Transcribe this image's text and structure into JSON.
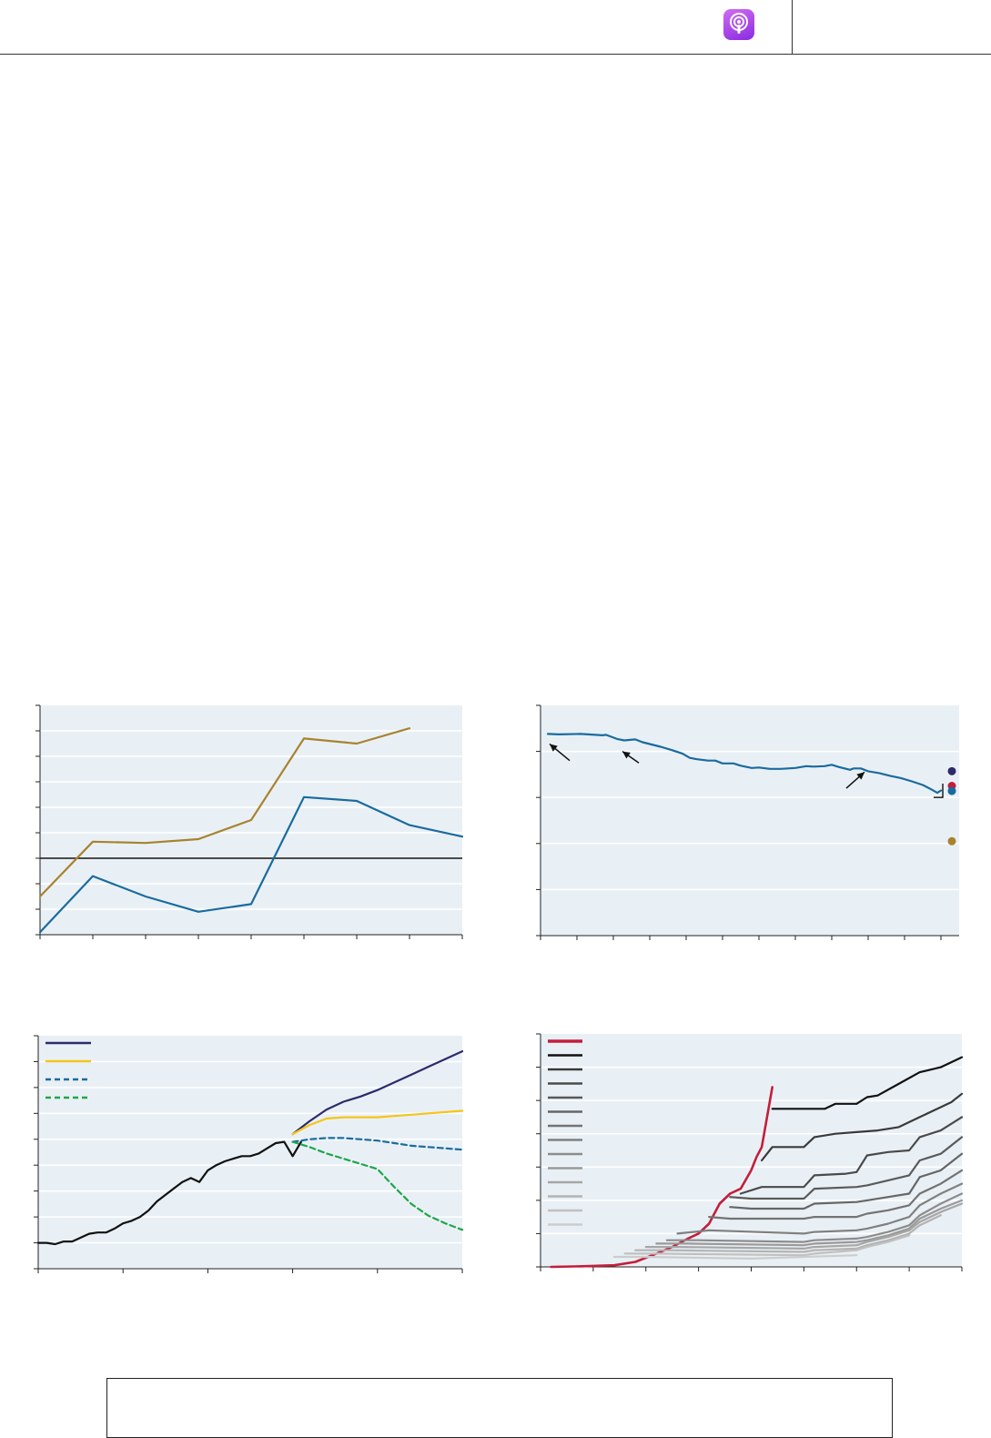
{
  "header": {
    "icon": "podcast-icon",
    "icon_color": "#9b3ee8"
  },
  "footer_box": {
    "text": ""
  },
  "chart_data": [
    {
      "id": "chart1",
      "type": "line",
      "title": "",
      "xlabel": "",
      "ylabel": "",
      "x": [
        0,
        1,
        2,
        3,
        4,
        5,
        6,
        7,
        8
      ],
      "xlim": [
        0,
        8
      ],
      "ylim": [
        -3,
        6
      ],
      "grid": true,
      "zero_line": 0,
      "series": [
        {
          "color": "#a8832f",
          "values": [
            -1.5,
            0.65,
            0.6,
            0.75,
            1.5,
            4.7,
            4.5,
            5.1,
            null
          ]
        },
        {
          "color": "#1a6b9f",
          "values": [
            -2.9,
            -0.7,
            -1.5,
            -2.1,
            -1.8,
            2.4,
            2.25,
            1.3,
            0.85
          ]
        }
      ],
      "background": "#e9f0f5"
    },
    {
      "id": "chart2",
      "type": "line",
      "title": "",
      "xlabel": "",
      "ylabel": "",
      "xlim": [
        0,
        115
      ],
      "ylim": [
        0,
        5
      ],
      "grid": true,
      "series": [
        {
          "color": "#1a6b9f",
          "x": [
            2,
            5,
            11,
            17,
            18,
            21,
            23,
            26,
            28,
            30,
            33,
            36,
            39,
            41,
            43,
            46,
            48,
            50,
            53,
            55,
            58,
            60,
            63,
            66,
            70,
            73,
            75,
            78,
            80,
            82,
            85,
            86,
            88,
            90,
            93,
            96,
            99,
            102,
            105,
            107,
            109,
            110
          ],
          "values": [
            4.38,
            4.37,
            4.38,
            4.35,
            4.36,
            4.27,
            4.24,
            4.26,
            4.2,
            4.16,
            4.1,
            4.03,
            3.95,
            3.86,
            3.83,
            3.8,
            3.8,
            3.74,
            3.74,
            3.69,
            3.64,
            3.65,
            3.62,
            3.62,
            3.64,
            3.68,
            3.67,
            3.68,
            3.71,
            3.66,
            3.6,
            3.63,
            3.63,
            3.57,
            3.53,
            3.47,
            3.42,
            3.35,
            3.27,
            3.19,
            3.1,
            3.15
          ]
        }
      ],
      "points": [
        {
          "x": 113,
          "y": 3.57,
          "color": "#2e2a6b"
        },
        {
          "x": 113,
          "y": 3.25,
          "color": "#c41e3a"
        },
        {
          "x": 113,
          "y": 3.14,
          "color": "#1a6b9f"
        },
        {
          "x": 113,
          "y": 2.05,
          "color": "#a8832f"
        }
      ],
      "annotations": [
        {
          "type": "arrow",
          "from": [
            8,
            3.8
          ],
          "to": [
            2.5,
            4.16
          ]
        },
        {
          "type": "arrow",
          "from": [
            27,
            3.75
          ],
          "to": [
            22.5,
            4.0
          ]
        },
        {
          "type": "arrow",
          "from": [
            84,
            3.2
          ],
          "to": [
            89,
            3.55
          ]
        },
        {
          "type": "bracket",
          "from": [
            110.5,
            3.3
          ],
          "to": [
            110.5,
            3.0
          ]
        }
      ],
      "background": "#e9f0f5"
    },
    {
      "id": "chart3",
      "type": "line",
      "title": "",
      "xlabel": "",
      "ylabel": "",
      "xlim": [
        0,
        50
      ],
      "ylim": [
        0,
        9
      ],
      "grid": true,
      "legend": {
        "placement": "top-left",
        "entries": [
          {
            "color": "#2e2a6b",
            "dash": false
          },
          {
            "color": "#f5c518",
            "dash": false
          },
          {
            "color": "#1a6b9f",
            "dash": true
          },
          {
            "color": "#1fa64a",
            "dash": true
          }
        ]
      },
      "series": [
        {
          "color": "#111111",
          "dash": false,
          "x": [
            0,
            1,
            2,
            3,
            4,
            5,
            6,
            7,
            8,
            9,
            10,
            11,
            12,
            13,
            14,
            15,
            16,
            17,
            18,
            19,
            20,
            21,
            22,
            23,
            24,
            25,
            26,
            27,
            28,
            29,
            30,
            31
          ],
          "values": [
            1.0,
            1.0,
            0.95,
            1.05,
            1.05,
            1.2,
            1.35,
            1.4,
            1.4,
            1.55,
            1.75,
            1.85,
            2.0,
            2.25,
            2.6,
            2.85,
            3.1,
            3.35,
            3.5,
            3.35,
            3.8,
            4.0,
            4.15,
            4.25,
            4.35,
            4.35,
            4.45,
            4.65,
            4.85,
            4.9,
            4.35,
            4.9
          ]
        },
        {
          "color": "#2e2a6b",
          "dash": false,
          "x": [
            30,
            32,
            34,
            36,
            38,
            40,
            42,
            44,
            46,
            48,
            50
          ],
          "values": [
            5.2,
            5.7,
            6.15,
            6.45,
            6.65,
            6.9,
            7.2,
            7.5,
            7.8,
            8.1,
            8.4
          ]
        },
        {
          "color": "#f5c518",
          "dash": false,
          "x": [
            30,
            32,
            34,
            36,
            38,
            40,
            42,
            44,
            46,
            48,
            50
          ],
          "values": [
            5.2,
            5.55,
            5.8,
            5.85,
            5.85,
            5.85,
            5.9,
            5.95,
            6.0,
            6.05,
            6.1
          ]
        },
        {
          "color": "#1a6b9f",
          "dash": true,
          "x": [
            30,
            32,
            34,
            36,
            38,
            40,
            42,
            44,
            46,
            48,
            50
          ],
          "values": [
            4.9,
            5.0,
            5.05,
            5.05,
            5.0,
            4.95,
            4.85,
            4.75,
            4.7,
            4.65,
            4.6
          ]
        },
        {
          "color": "#1fa64a",
          "dash": true,
          "x": [
            30,
            32,
            34,
            36,
            38,
            40,
            42,
            44,
            46,
            48,
            50
          ],
          "values": [
            4.9,
            4.7,
            4.45,
            4.25,
            4.05,
            3.85,
            3.15,
            2.5,
            2.05,
            1.75,
            1.5
          ]
        }
      ],
      "background": "#e9f0f5"
    },
    {
      "id": "chart4",
      "type": "line",
      "title": "",
      "xlabel": "",
      "ylabel": "",
      "xlim": [
        0,
        80
      ],
      "ylim": [
        0,
        7
      ],
      "grid": true,
      "legend": {
        "placement": "top-left",
        "entries": [
          {
            "color": "#c41e3a"
          },
          {
            "color": "#111111"
          },
          {
            "color": "#3a3a3a"
          },
          {
            "color": "#4a4a4a"
          },
          {
            "color": "#5a5a5a"
          },
          {
            "color": "#666666"
          },
          {
            "color": "#737373"
          },
          {
            "color": "#808080"
          },
          {
            "color": "#8c8c8c"
          },
          {
            "color": "#999999"
          },
          {
            "color": "#a6a6a6"
          },
          {
            "color": "#b3b3b3"
          },
          {
            "color": "#c0c0c0"
          },
          {
            "color": "#cccccc"
          }
        ]
      },
      "series": [
        {
          "color": "#c41e3a",
          "width": 2.6,
          "x": [
            2,
            8,
            14,
            18,
            22,
            25,
            28,
            30,
            32,
            34,
            36,
            38,
            40,
            41,
            42,
            43,
            44
          ],
          "values": [
            0,
            0.02,
            0.05,
            0.15,
            0.4,
            0.6,
            0.85,
            1.0,
            1.3,
            1.9,
            2.2,
            2.35,
            2.9,
            3.3,
            3.6,
            4.5,
            5.4
          ]
        },
        {
          "color": "#111111",
          "x": [
            44,
            50,
            54,
            56,
            60,
            62,
            64,
            68,
            72,
            76,
            78,
            80
          ],
          "values": [
            4.75,
            4.75,
            4.75,
            4.9,
            4.9,
            5.1,
            5.15,
            5.5,
            5.85,
            6.0,
            6.15,
            6.3
          ]
        },
        {
          "color": "#3a3a3a",
          "x": [
            42,
            44,
            50,
            52,
            56,
            60,
            64,
            68,
            72,
            76,
            78,
            80
          ],
          "values": [
            3.2,
            3.6,
            3.6,
            3.9,
            4.0,
            4.05,
            4.1,
            4.2,
            4.5,
            4.8,
            4.95,
            5.2
          ]
        },
        {
          "color": "#4a4a4a",
          "x": [
            38,
            42,
            50,
            52,
            58,
            60,
            62,
            66,
            70,
            72,
            76,
            80
          ],
          "values": [
            2.2,
            2.4,
            2.4,
            2.75,
            2.8,
            2.85,
            3.35,
            3.45,
            3.5,
            3.9,
            4.1,
            4.5
          ]
        },
        {
          "color": "#5a5a5a",
          "x": [
            36,
            40,
            50,
            52,
            60,
            62,
            66,
            70,
            72,
            76,
            80
          ],
          "values": [
            2.1,
            2.05,
            2.05,
            2.35,
            2.4,
            2.45,
            2.6,
            2.75,
            3.2,
            3.4,
            3.9
          ]
        },
        {
          "color": "#666666",
          "x": [
            36,
            40,
            50,
            52,
            60,
            62,
            66,
            70,
            72,
            76,
            80
          ],
          "values": [
            1.8,
            1.75,
            1.75,
            1.9,
            1.95,
            2.0,
            2.1,
            2.2,
            2.7,
            2.9,
            3.4
          ]
        },
        {
          "color": "#737373",
          "x": [
            32,
            36,
            50,
            52,
            60,
            62,
            66,
            70,
            72,
            76,
            80
          ],
          "values": [
            1.5,
            1.45,
            1.45,
            1.5,
            1.5,
            1.6,
            1.7,
            1.85,
            2.2,
            2.5,
            2.9
          ]
        },
        {
          "color": "#808080",
          "x": [
            26,
            32,
            50,
            52,
            60,
            62,
            66,
            70,
            72,
            76,
            80
          ],
          "values": [
            1.0,
            1.1,
            1.0,
            1.05,
            1.1,
            1.15,
            1.3,
            1.5,
            1.85,
            2.2,
            2.5
          ]
        },
        {
          "color": "#8c8c8c",
          "x": [
            24,
            30,
            50,
            52,
            60,
            62,
            66,
            70,
            72,
            76,
            80
          ],
          "values": [
            0.8,
            0.8,
            0.75,
            0.8,
            0.85,
            0.9,
            1.05,
            1.25,
            1.55,
            1.9,
            2.2
          ]
        },
        {
          "color": "#999999",
          "x": [
            22,
            28,
            50,
            52,
            60,
            62,
            66,
            70,
            72,
            76,
            80
          ],
          "values": [
            0.7,
            0.7,
            0.65,
            0.7,
            0.75,
            0.8,
            0.95,
            1.15,
            1.45,
            1.75,
            2.0
          ]
        },
        {
          "color": "#a6a6a6",
          "x": [
            20,
            26,
            50,
            52,
            60,
            62,
            66,
            70,
            72,
            76,
            80
          ],
          "values": [
            0.6,
            0.6,
            0.55,
            0.6,
            0.65,
            0.75,
            0.9,
            1.1,
            1.35,
            1.65,
            1.9
          ]
        },
        {
          "color": "#b3b3b3",
          "x": [
            18,
            24,
            50,
            52,
            60,
            62,
            66,
            70,
            72,
            76
          ],
          "values": [
            0.5,
            0.5,
            0.45,
            0.5,
            0.55,
            0.65,
            0.8,
            1.0,
            1.25,
            1.55
          ]
        },
        {
          "color": "#c0c0c0",
          "x": [
            16,
            22,
            50,
            52,
            60,
            62,
            66,
            70
          ],
          "values": [
            0.4,
            0.4,
            0.35,
            0.4,
            0.5,
            0.6,
            0.75,
            0.95
          ]
        },
        {
          "color": "#cccccc",
          "x": [
            14,
            20,
            40,
            50,
            60
          ],
          "values": [
            0.3,
            0.3,
            0.25,
            0.3,
            0.35
          ]
        }
      ],
      "background": "#e9f0f5"
    }
  ]
}
